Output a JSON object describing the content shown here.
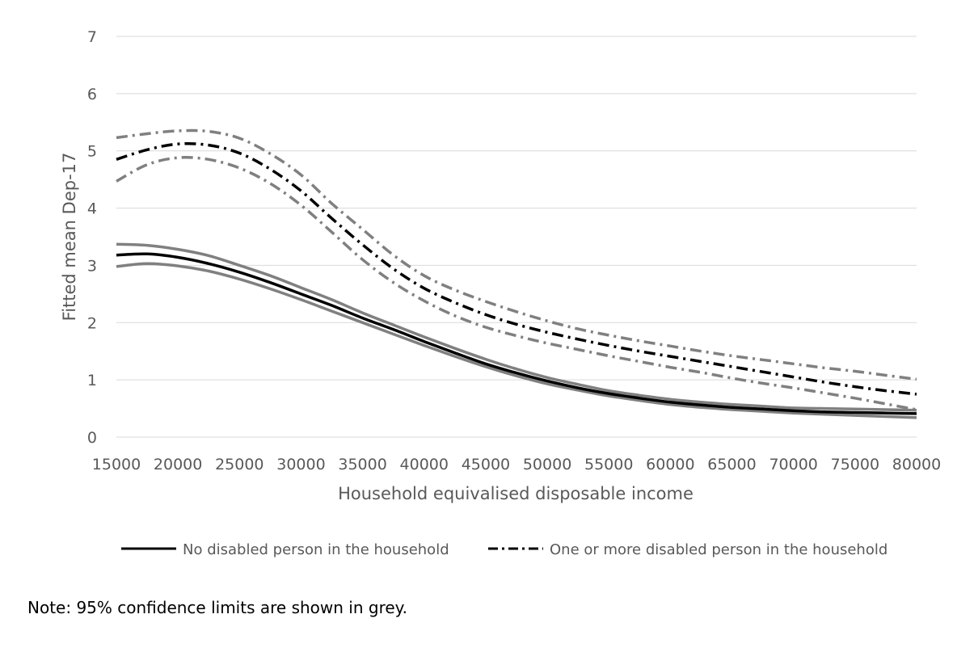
{
  "chart_data": {
    "type": "line",
    "xlabel": "Household equivalised disposable income",
    "ylabel": "Fitted mean Dep-17",
    "xlim": [
      15000,
      80000
    ],
    "ylim": [
      0,
      7
    ],
    "xticks": [
      "15000",
      "20000",
      "25000",
      "30000",
      "35000",
      "40000",
      "45000",
      "50000",
      "55000",
      "60000",
      "65000",
      "70000",
      "75000",
      "80000"
    ],
    "yticks": [
      "0",
      "1",
      "2",
      "3",
      "4",
      "5",
      "6",
      "7"
    ],
    "grid": "horizontal",
    "legend_position": "bottom",
    "x": [
      15000,
      17500,
      20000,
      22500,
      25000,
      27500,
      30000,
      32500,
      35000,
      37500,
      40000,
      42500,
      45000,
      47500,
      50000,
      52500,
      55000,
      57500,
      60000,
      62500,
      65000,
      67500,
      70000,
      72500,
      75000,
      77500,
      80000
    ],
    "series": [
      {
        "name": "No disabled person in the household",
        "style": "solid",
        "color": "#000000",
        "values": [
          3.18,
          3.2,
          3.14,
          3.03,
          2.88,
          2.7,
          2.5,
          2.3,
          2.08,
          1.88,
          1.67,
          1.47,
          1.28,
          1.12,
          0.98,
          0.86,
          0.76,
          0.68,
          0.61,
          0.56,
          0.52,
          0.49,
          0.46,
          0.44,
          0.43,
          0.42,
          0.41
        ],
        "ci_lower": [
          2.98,
          3.03,
          2.99,
          2.9,
          2.76,
          2.59,
          2.4,
          2.2,
          2.0,
          1.8,
          1.6,
          1.41,
          1.23,
          1.07,
          0.93,
          0.82,
          0.72,
          0.64,
          0.57,
          0.52,
          0.48,
          0.45,
          0.42,
          0.4,
          0.38,
          0.36,
          0.34
        ],
        "ci_upper": [
          3.37,
          3.35,
          3.28,
          3.17,
          3.0,
          2.82,
          2.61,
          2.4,
          2.17,
          1.96,
          1.75,
          1.55,
          1.36,
          1.19,
          1.04,
          0.92,
          0.81,
          0.73,
          0.66,
          0.61,
          0.57,
          0.54,
          0.51,
          0.5,
          0.49,
          0.48,
          0.47
        ]
      },
      {
        "name": "One or more disabled person in the household",
        "style": "dash-dot",
        "color": "#000000",
        "values": [
          4.85,
          5.02,
          5.12,
          5.1,
          4.96,
          4.68,
          4.3,
          3.82,
          3.36,
          2.94,
          2.6,
          2.35,
          2.14,
          1.97,
          1.83,
          1.71,
          1.6,
          1.5,
          1.41,
          1.32,
          1.23,
          1.14,
          1.05,
          0.96,
          0.88,
          0.81,
          0.75
        ],
        "ci_lower": [
          4.47,
          4.76,
          4.88,
          4.85,
          4.7,
          4.43,
          4.05,
          3.58,
          3.1,
          2.7,
          2.38,
          2.12,
          1.92,
          1.77,
          1.64,
          1.53,
          1.42,
          1.32,
          1.22,
          1.13,
          1.03,
          0.94,
          0.86,
          0.77,
          0.68,
          0.58,
          0.48
        ],
        "ci_upper": [
          5.23,
          5.3,
          5.35,
          5.34,
          5.22,
          4.95,
          4.58,
          4.08,
          3.63,
          3.18,
          2.82,
          2.57,
          2.37,
          2.19,
          2.03,
          1.89,
          1.78,
          1.68,
          1.59,
          1.5,
          1.42,
          1.35,
          1.28,
          1.21,
          1.15,
          1.08,
          1.01
        ]
      }
    ],
    "ci_color": "#808080"
  },
  "note": "Note: 95% confidence limits are shown in grey."
}
